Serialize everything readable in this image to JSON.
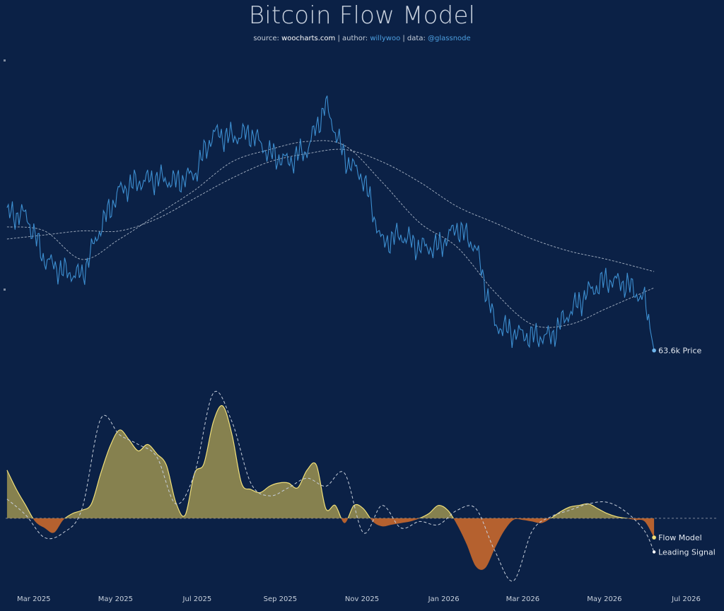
{
  "header": {
    "title": "Bitcoin Flow Model",
    "subtitle": {
      "source_label": "source: ",
      "source": "woocharts.com",
      "sep1": " | author: ",
      "author": "willywoo",
      "sep2": " | data: ",
      "data_source": "@glassnode"
    }
  },
  "chart_data": [
    {
      "type": "line",
      "title": "Bitcoin Flow Model",
      "series": [
        {
          "name": "Price",
          "color": "#3d8fd1",
          "x": [
            "2025-02-09",
            "2025-02-23",
            "2025-03-09",
            "2025-03-23",
            "2025-04-06",
            "2025-04-20",
            "2025-05-04",
            "2025-05-18",
            "2025-06-01",
            "2025-06-15",
            "2025-06-29",
            "2025-07-13",
            "2025-07-27",
            "2025-08-10",
            "2025-08-24",
            "2025-09-07",
            "2025-09-21",
            "2025-10-05",
            "2025-10-19",
            "2025-11-02",
            "2025-11-16",
            "2025-11-30",
            "2025-12-14",
            "2025-12-28",
            "2026-01-11",
            "2026-01-25",
            "2026-02-08",
            "2026-02-22",
            "2026-03-08",
            "2026-03-22",
            "2026-04-05",
            "2026-04-19",
            "2026-05-03",
            "2026-05-17",
            "2026-05-31",
            "2026-06-07"
          ],
          "values": [
            97,
            97,
            86,
            83,
            82,
            94,
            103,
            105,
            106,
            105,
            107,
            117,
            116,
            117,
            112,
            110,
            113,
            124,
            111,
            106,
            90,
            92,
            89,
            89,
            94,
            89,
            70,
            68,
            67,
            67,
            73,
            78,
            81,
            80,
            76,
            63.6
          ],
          "last_label": "63.6k Price"
        },
        {
          "name": "",
          "style": "dashed",
          "color": "#a7b3c4",
          "x": [
            "2025-02-09",
            "2025-03-09",
            "2025-04-06",
            "2025-05-04",
            "2025-06-01",
            "2025-06-29",
            "2025-07-27",
            "2025-08-24",
            "2025-09-21",
            "2025-10-19",
            "2025-11-16",
            "2025-12-14",
            "2026-01-11",
            "2026-02-08",
            "2026-03-08",
            "2026-04-05",
            "2026-05-03",
            "2026-06-07"
          ],
          "values": [
            94,
            93,
            86,
            91,
            97,
            103,
            110,
            113,
            115,
            114,
            105,
            95,
            89,
            78,
            70,
            70,
            74,
            79
          ]
        },
        {
          "name": "",
          "style": "dashed",
          "color": "#a7b3c4",
          "x": [
            "2025-02-09",
            "2025-03-09",
            "2025-04-06",
            "2025-05-04",
            "2025-06-01",
            "2025-06-29",
            "2025-07-27",
            "2025-08-24",
            "2025-09-21",
            "2025-10-19",
            "2025-11-16",
            "2025-12-14",
            "2026-01-11",
            "2026-02-08",
            "2026-03-08",
            "2026-04-05",
            "2026-05-03",
            "2026-06-07"
          ],
          "values": [
            91,
            92,
            93,
            93,
            96,
            101,
            106,
            110,
            112,
            113,
            110,
            105,
            99,
            95,
            91,
            88,
            86,
            83
          ]
        }
      ],
      "ylim": [
        55,
        135
      ],
      "xlim": [
        "2025-02-08",
        "2026-07-25"
      ],
      "ticks": [
        "Mar 2025",
        "May 2025",
        "Jul 2025",
        "Sep 2025",
        "Nov 2025",
        "Jan 2026",
        "Mar 2026",
        "May 2026",
        "Jul 2026"
      ],
      "grid": false
    },
    {
      "type": "area",
      "series": [
        {
          "name": "Flow Model",
          "positive_color": "#a99c52",
          "negative_color": "#c8682c",
          "line_color": "#f1e07a",
          "x": [
            "2025-02-09",
            "2025-02-16",
            "2025-02-23",
            "2025-03-02",
            "2025-03-09",
            "2025-03-16",
            "2025-03-23",
            "2025-03-30",
            "2025-04-06",
            "2025-04-13",
            "2025-04-20",
            "2025-04-27",
            "2025-05-04",
            "2025-05-11",
            "2025-05-18",
            "2025-05-25",
            "2025-06-01",
            "2025-06-08",
            "2025-06-15",
            "2025-06-22",
            "2025-06-29",
            "2025-07-06",
            "2025-07-13",
            "2025-07-20",
            "2025-07-27",
            "2025-08-03",
            "2025-08-10",
            "2025-08-17",
            "2025-08-24",
            "2025-08-31",
            "2025-09-07",
            "2025-09-14",
            "2025-09-21",
            "2025-09-28",
            "2025-10-05",
            "2025-10-12",
            "2025-10-19",
            "2025-10-26",
            "2025-11-02",
            "2025-11-09",
            "2025-11-16",
            "2025-11-23",
            "2025-11-30",
            "2025-12-07",
            "2025-12-14",
            "2025-12-21",
            "2025-12-28",
            "2026-01-04",
            "2026-01-11",
            "2026-01-18",
            "2026-01-25",
            "2026-02-01",
            "2026-02-08",
            "2026-02-15",
            "2026-02-22",
            "2026-03-01",
            "2026-03-08",
            "2026-03-15",
            "2026-03-22",
            "2026-03-29",
            "2026-04-05",
            "2026-04-12",
            "2026-04-19",
            "2026-04-26",
            "2026-05-03",
            "2026-05-10",
            "2026-05-17",
            "2026-05-24",
            "2026-05-31",
            "2026-06-07"
          ],
          "values": [
            30,
            18,
            8,
            -2,
            -6,
            -9,
            -1,
            3,
            5,
            9,
            28,
            45,
            55,
            49,
            42,
            46,
            40,
            33,
            10,
            2,
            28,
            34,
            60,
            70,
            52,
            22,
            18,
            16,
            20,
            22,
            22,
            19,
            30,
            33,
            6,
            8,
            -3,
            8,
            6,
            -2,
            -5,
            -4,
            -3,
            -2,
            0,
            3,
            8,
            5,
            -4,
            -16,
            -30,
            -31,
            -19,
            -8,
            -1,
            -1,
            -2,
            -3,
            0,
            4,
            7,
            8,
            9,
            6,
            3,
            1,
            0,
            -1,
            -2,
            -12
          ],
          "last_label": "Flow Model"
        },
        {
          "name": "Leading Signal",
          "style": "dashed",
          "color": "#c7cfdb",
          "x": [
            "2025-02-09",
            "2025-02-23",
            "2025-03-09",
            "2025-03-23",
            "2025-04-06",
            "2025-04-20",
            "2025-05-04",
            "2025-05-18",
            "2025-06-01",
            "2025-06-15",
            "2025-06-29",
            "2025-07-13",
            "2025-07-27",
            "2025-08-10",
            "2025-08-24",
            "2025-09-07",
            "2025-09-21",
            "2025-10-05",
            "2025-10-19",
            "2025-11-02",
            "2025-11-16",
            "2025-11-30",
            "2025-12-14",
            "2025-12-28",
            "2026-01-11",
            "2026-01-25",
            "2026-02-08",
            "2026-02-22",
            "2026-03-08",
            "2026-03-22",
            "2026-04-05",
            "2026-04-19",
            "2026-05-03",
            "2026-05-17",
            "2026-05-31",
            "2026-06-07"
          ],
          "values": [
            12,
            2,
            -12,
            -9,
            6,
            62,
            52,
            46,
            38,
            9,
            28,
            78,
            60,
            22,
            14,
            19,
            25,
            20,
            28,
            -9,
            8,
            -6,
            -2,
            -4,
            5,
            6,
            -20,
            -39,
            -8,
            1,
            5,
            9,
            10,
            4,
            -8,
            -21
          ],
          "last_label": "Leading Signal"
        }
      ],
      "ylim": [
        -45,
        85
      ],
      "zero_line": true
    }
  ]
}
